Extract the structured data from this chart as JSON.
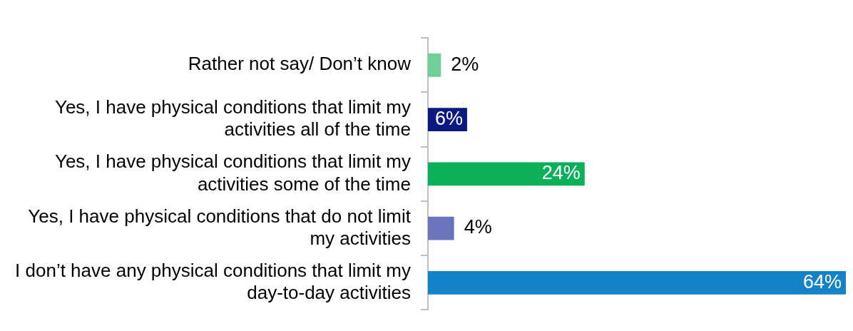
{
  "chart_data": {
    "type": "bar",
    "orientation": "horizontal",
    "categories": [
      "Rather not say/ Don’t know",
      "Yes, I have physical conditions that limit my activities all of the time",
      "Yes, I have physical conditions that limit my activities some of the time",
      "Yes, I have physical conditions that do not limit my activities",
      "I don’t have any physical conditions that limit my day-to-day activities"
    ],
    "values": [
      2,
      6,
      24,
      4,
      64
    ],
    "colors": [
      "#6fcf97",
      "#0c1a80",
      "#0caf5a",
      "#6a74bd",
      "#1382c8"
    ],
    "value_labels": [
      "2%",
      "6%",
      "24%",
      "4%",
      "64%"
    ],
    "grid": false,
    "legend": false,
    "tick_labels": "y"
  }
}
